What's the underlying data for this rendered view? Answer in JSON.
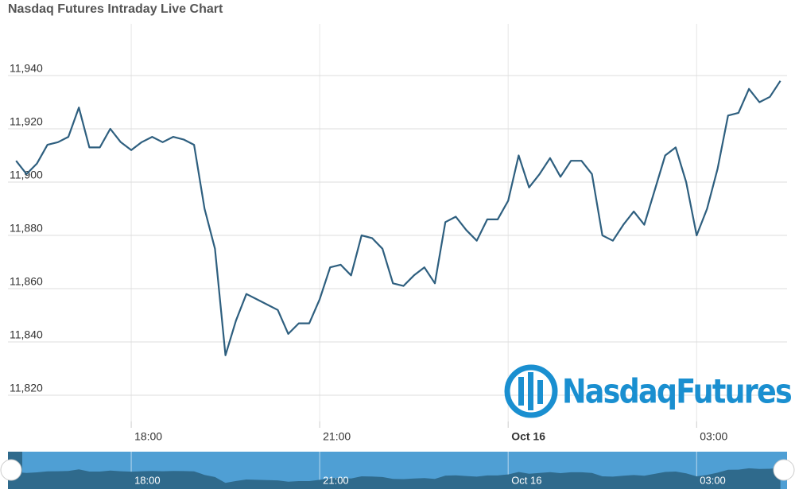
{
  "chart_data": {
    "type": "line",
    "title": "Nasdaq Futures Intraday Live Chart",
    "watermark": "NasdaqFutures",
    "categories": [
      null,
      null,
      null,
      null,
      null,
      null,
      null,
      null,
      null,
      null,
      null,
      "18:00",
      null,
      null,
      null,
      null,
      null,
      null,
      null,
      null,
      null,
      null,
      null,
      null,
      null,
      null,
      null,
      null,
      null,
      "21:00",
      null,
      null,
      null,
      null,
      null,
      null,
      null,
      null,
      null,
      null,
      null,
      null,
      null,
      null,
      null,
      null,
      null,
      "Oct 16",
      null,
      null,
      null,
      null,
      null,
      null,
      null,
      null,
      null,
      null,
      null,
      null,
      null,
      null,
      null,
      null,
      null,
      "03:00",
      null,
      null,
      null,
      null,
      null,
      null,
      null,
      null
    ],
    "series": [
      {
        "name": "Nasdaq Futures",
        "color": "#2e5f7f",
        "values": [
          11908,
          11903,
          11907,
          11914,
          11915,
          11917,
          11928,
          11913,
          11913,
          11920,
          11915,
          11912,
          11915,
          11917,
          11915,
          11917,
          11916,
          11914,
          11890,
          11875,
          11835,
          11848,
          11858,
          11856,
          11854,
          11852,
          11843,
          11847,
          11847,
          11856,
          11868,
          11869,
          11865,
          11880,
          11879,
          11875,
          11862,
          11861,
          11865,
          11868,
          11862,
          11885,
          11887,
          11882,
          11878,
          11886,
          11886,
          11893,
          11910,
          11898,
          11903,
          11909,
          11902,
          11908,
          11908,
          11903,
          11880,
          11878,
          11884,
          11889,
          11884,
          11897,
          11910,
          11913,
          11900,
          11880,
          11890,
          11905,
          11925,
          11926,
          11935,
          11930,
          11932,
          11938
        ]
      }
    ],
    "ylim": [
      11810,
      11960
    ],
    "yticks": [
      {
        "value": 11820,
        "label": "11,820"
      },
      {
        "value": 11840,
        "label": "11,840"
      },
      {
        "value": 11860,
        "label": "11,860"
      },
      {
        "value": 11880,
        "label": "11,880"
      },
      {
        "value": 11900,
        "label": "11,900"
      },
      {
        "value": 11920,
        "label": "11,920"
      },
      {
        "value": 11940,
        "label": "11,940"
      }
    ],
    "grid": true
  }
}
